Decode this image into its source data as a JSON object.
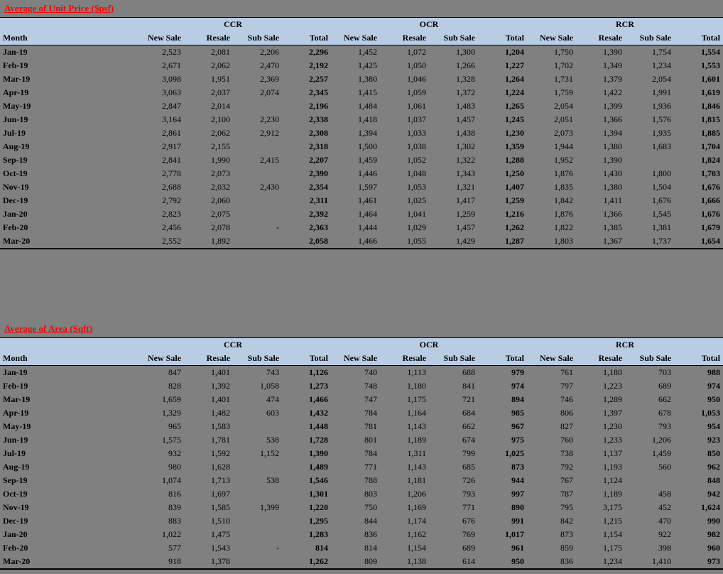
{
  "titles": {
    "t1": "Average of Unit Price ($psf)",
    "t2": "Average of Area (Sqft)"
  },
  "regions": [
    "CCR",
    "OCR",
    "RCR"
  ],
  "subheaders": [
    "Month",
    "New Sale",
    "Resale",
    "Sub Sale",
    "Total",
    "New Sale",
    "Resale",
    "Sub Sale",
    "Total",
    "New Sale",
    "Resale",
    "Sub Sale",
    "Total"
  ],
  "months": [
    "Jan-19",
    "Feb-19",
    "Mar-19",
    "Apr-19",
    "May-19",
    "Jun-19",
    "Jul-19",
    "Aug-19",
    "Sep-19",
    "Oct-19",
    "Nov-19",
    "Dec-19",
    "Jan-20",
    "Feb-20",
    "Mar-20"
  ],
  "table1": [
    [
      "2,523",
      "2,081",
      "2,206",
      "2,296",
      "1,452",
      "1,072",
      "1,300",
      "1,204",
      "1,750",
      "1,390",
      "1,754",
      "1,554"
    ],
    [
      "2,671",
      "2,062",
      "2,470",
      "2,192",
      "1,425",
      "1,050",
      "1,266",
      "1,227",
      "1,702",
      "1,349",
      "1,234",
      "1,553"
    ],
    [
      "3,098",
      "1,951",
      "2,369",
      "2,257",
      "1,380",
      "1,046",
      "1,328",
      "1,264",
      "1,731",
      "1,379",
      "2,054",
      "1,601"
    ],
    [
      "3,063",
      "2,037",
      "2,074",
      "2,345",
      "1,415",
      "1,059",
      "1,372",
      "1,224",
      "1,759",
      "1,422",
      "1,991",
      "1,619"
    ],
    [
      "2,847",
      "2,014",
      "",
      "2,196",
      "1,484",
      "1,061",
      "1,483",
      "1,265",
      "2,054",
      "1,399",
      "1,936",
      "1,846"
    ],
    [
      "3,164",
      "2,100",
      "2,230",
      "2,338",
      "1,418",
      "1,037",
      "1,457",
      "1,245",
      "2,051",
      "1,366",
      "1,576",
      "1,815"
    ],
    [
      "2,861",
      "2,062",
      "2,912",
      "2,308",
      "1,394",
      "1,033",
      "1,438",
      "1,230",
      "2,073",
      "1,394",
      "1,935",
      "1,885"
    ],
    [
      "2,917",
      "2,155",
      "",
      "2,318",
      "1,500",
      "1,038",
      "1,302",
      "1,359",
      "1,944",
      "1,380",
      "1,683",
      "1,704"
    ],
    [
      "2,841",
      "1,990",
      "2,415",
      "2,207",
      "1,459",
      "1,052",
      "1,322",
      "1,288",
      "1,952",
      "1,390",
      "",
      "1,824"
    ],
    [
      "2,778",
      "2,073",
      "",
      "2,390",
      "1,446",
      "1,048",
      "1,343",
      "1,250",
      "1,876",
      "1,430",
      "1,800",
      "1,703"
    ],
    [
      "2,688",
      "2,032",
      "2,430",
      "2,354",
      "1,597",
      "1,053",
      "1,321",
      "1,407",
      "1,835",
      "1,380",
      "1,504",
      "1,676"
    ],
    [
      "2,792",
      "2,060",
      "",
      "2,311",
      "1,461",
      "1,025",
      "1,417",
      "1,259",
      "1,842",
      "1,411",
      "1,676",
      "1,666"
    ],
    [
      "2,823",
      "2,075",
      "",
      "2,392",
      "1,464",
      "1,041",
      "1,259",
      "1,216",
      "1,876",
      "1,366",
      "1,545",
      "1,676"
    ],
    [
      "2,456",
      "2,078",
      "-",
      "2,363",
      "1,444",
      "1,029",
      "1,457",
      "1,262",
      "1,822",
      "1,385",
      "1,381",
      "1,679"
    ],
    [
      "2,552",
      "1,892",
      "",
      "2,058",
      "1,466",
      "1,055",
      "1,429",
      "1,287",
      "1,803",
      "1,367",
      "1,737",
      "1,654"
    ]
  ],
  "table2": [
    [
      "847",
      "1,401",
      "743",
      "1,126",
      "740",
      "1,113",
      "688",
      "979",
      "761",
      "1,180",
      "703",
      "988"
    ],
    [
      "828",
      "1,392",
      "1,058",
      "1,273",
      "748",
      "1,180",
      "841",
      "974",
      "797",
      "1,223",
      "689",
      "974"
    ],
    [
      "1,659",
      "1,401",
      "474",
      "1,466",
      "747",
      "1,175",
      "721",
      "894",
      "746",
      "1,289",
      "662",
      "950"
    ],
    [
      "1,329",
      "1,482",
      "603",
      "1,432",
      "784",
      "1,164",
      "684",
      "985",
      "806",
      "1,397",
      "678",
      "1,053"
    ],
    [
      "965",
      "1,583",
      "",
      "1,448",
      "781",
      "1,143",
      "662",
      "967",
      "827",
      "1,230",
      "793",
      "954"
    ],
    [
      "1,575",
      "1,781",
      "538",
      "1,728",
      "801",
      "1,189",
      "674",
      "975",
      "760",
      "1,233",
      "1,206",
      "923"
    ],
    [
      "932",
      "1,592",
      "1,152",
      "1,390",
      "784",
      "1,311",
      "799",
      "1,025",
      "738",
      "1,137",
      "1,459",
      "850"
    ],
    [
      "980",
      "1,628",
      "",
      "1,489",
      "771",
      "1,143",
      "685",
      "873",
      "792",
      "1,193",
      "560",
      "962"
    ],
    [
      "1,074",
      "1,713",
      "538",
      "1,546",
      "788",
      "1,181",
      "726",
      "944",
      "767",
      "1,124",
      "",
      "848"
    ],
    [
      "816",
      "1,697",
      "",
      "1,301",
      "803",
      "1,206",
      "793",
      "997",
      "787",
      "1,189",
      "458",
      "942"
    ],
    [
      "839",
      "1,585",
      "1,399",
      "1,220",
      "750",
      "1,169",
      "771",
      "890",
      "795",
      "3,175",
      "452",
      "1,624"
    ],
    [
      "883",
      "1,510",
      "",
      "1,295",
      "844",
      "1,174",
      "676",
      "991",
      "842",
      "1,215",
      "470",
      "990"
    ],
    [
      "1,022",
      "1,475",
      "",
      "1,283",
      "836",
      "1,162",
      "769",
      "1,017",
      "873",
      "1,154",
      "922",
      "982"
    ],
    [
      "577",
      "1,543",
      "-",
      "814",
      "814",
      "1,154",
      "689",
      "961",
      "859",
      "1,175",
      "398",
      "960"
    ],
    [
      "918",
      "1,378",
      "",
      "1,262",
      "809",
      "1,138",
      "614",
      "950",
      "836",
      "1,234",
      "1,410",
      "973"
    ]
  ],
  "style": {
    "header_bg": "#b8cce4",
    "body_bg": "#808080",
    "title_color": "#ff0000",
    "border_color": "#000000",
    "font_family": "Times New Roman",
    "font_size": 12
  }
}
